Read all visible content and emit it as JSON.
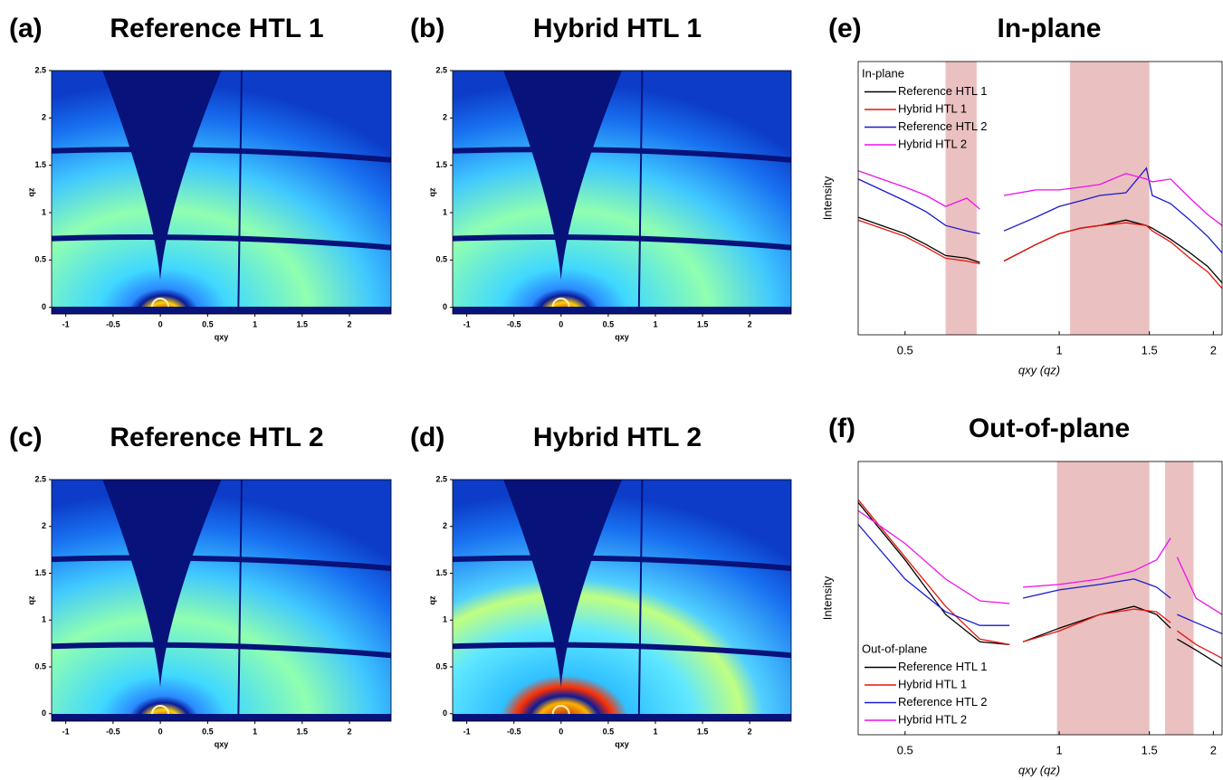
{
  "chart_data": [
    {
      "type": "image",
      "panel": "(a)",
      "title": "Reference HTL 1",
      "xlabel": "qxy",
      "ylabel": "qz",
      "xlim": [
        -1.15,
        2.44
      ],
      "ylim": [
        -0.07,
        2.5
      ],
      "xticks": [
        -1,
        -0.5,
        0,
        0.5,
        1,
        1.5,
        2
      ],
      "yticks": [
        0,
        0.5,
        1,
        1.5,
        2,
        2.5
      ]
    },
    {
      "type": "image",
      "panel": "(b)",
      "title": "Hybrid HTL 1",
      "xlabel": "qxy",
      "ylabel": "qz",
      "xlim": [
        -1.15,
        2.44
      ],
      "ylim": [
        -0.07,
        2.5
      ],
      "xticks": [
        -1,
        -0.5,
        0,
        0.5,
        1,
        1.5,
        2
      ],
      "yticks": [
        0,
        0.5,
        1,
        1.5,
        2,
        2.5
      ]
    },
    {
      "type": "image",
      "panel": "(c)",
      "title": "Reference HTL 2",
      "xlabel": "qxy",
      "ylabel": "qz",
      "xlim": [
        -1.15,
        2.44
      ],
      "ylim": [
        -0.08,
        2.5
      ],
      "xticks": [
        -1,
        -0.5,
        0,
        0.5,
        1,
        1.5,
        2
      ],
      "yticks": [
        0,
        0.5,
        1,
        1.5,
        2,
        2.5
      ]
    },
    {
      "type": "image",
      "panel": "(d)",
      "title": "Hybrid HTL 2",
      "xlabel": "qxy",
      "ylabel": "qz",
      "xlim": [
        -1.15,
        2.44
      ],
      "ylim": [
        -0.08,
        2.5
      ],
      "xticks": [
        -1,
        -0.5,
        0,
        0.5,
        1,
        1.5,
        2
      ],
      "yticks": [
        0,
        0.5,
        1,
        1.5,
        2,
        2.5
      ]
    },
    {
      "type": "line",
      "panel": "(e)",
      "title": "In-plane",
      "xlabel": "qxy (qz)",
      "ylabel": "Intensity",
      "xscale": "log",
      "xlim": [
        0.405,
        2.08
      ],
      "ylim": [
        0,
        100
      ],
      "xticks": [
        0.5,
        1,
        1.5,
        2
      ],
      "legend_title": "In-plane",
      "legend": "upper left",
      "shade_color": "#ebc0c0",
      "shaded_regions": [
        [
          0.6,
          0.69
        ],
        [
          1.05,
          1.5
        ]
      ],
      "x": [
        0.405,
        0.45,
        0.5,
        0.55,
        0.6,
        0.66,
        0.7,
        0.74,
        0.78,
        0.9,
        1.0,
        1.1,
        1.2,
        1.35,
        1.48,
        1.52,
        1.65,
        1.8,
        1.95,
        2.08
      ],
      "series": [
        {
          "name": "Reference HTL 1",
          "color": "#000000",
          "values": [
            43,
            40,
            37,
            33,
            29,
            28,
            26.5,
            null,
            27,
            33,
            37,
            39,
            40,
            42,
            40,
            39,
            35,
            30,
            25,
            19
          ]
        },
        {
          "name": "Hybrid HTL 1",
          "color": "#e8140c",
          "values": [
            42,
            39,
            36,
            32,
            28,
            27,
            26,
            null,
            27,
            33,
            37,
            39,
            40,
            41,
            40,
            38,
            34,
            28,
            23,
            17
          ]
        },
        {
          "name": "Reference HTL 2",
          "color": "#1a1ad0",
          "values": [
            57,
            53,
            49,
            45,
            40,
            38,
            37,
            null,
            38,
            43,
            47,
            49,
            51,
            52,
            61,
            51,
            48,
            42,
            36,
            30
          ]
        },
        {
          "name": "Hybrid HTL 2",
          "color": "#ee10ee",
          "values": [
            60,
            57,
            54,
            51,
            47,
            50,
            46,
            null,
            51,
            53,
            53,
            54,
            55,
            59,
            57,
            56,
            57,
            50,
            44,
            40
          ]
        }
      ]
    },
    {
      "type": "line",
      "panel": "(f)",
      "title": "Out-of-plane",
      "xlabel": "qxy (qz)",
      "ylabel": "Intensity",
      "xscale": "log",
      "xlim": [
        0.405,
        2.08
      ],
      "ylim": [
        0,
        100
      ],
      "xticks": [
        0.5,
        1,
        1.5,
        2
      ],
      "legend_title": "Out-of-plane",
      "legend": "lower left",
      "shade_color": "#ebc0c0",
      "shaded_regions": [
        [
          0.99,
          1.5
        ],
        [
          1.61,
          1.83
        ]
      ],
      "x": [
        0.405,
        0.5,
        0.6,
        0.7,
        0.8,
        0.82,
        0.85,
        1.0,
        1.2,
        1.4,
        1.55,
        1.65,
        1.68,
        1.7,
        1.85,
        2.08
      ],
      "series": [
        {
          "name": "Reference HTL 1",
          "color": "#000000",
          "values": [
            85,
            64,
            44,
            34,
            33,
            null,
            34,
            39,
            44,
            47,
            44,
            39,
            null,
            35,
            31,
            25
          ]
        },
        {
          "name": "Hybrid HTL 1",
          "color": "#e8140c",
          "values": [
            86,
            65,
            47,
            35,
            33,
            null,
            34,
            38,
            44,
            46,
            45,
            41,
            null,
            38,
            33,
            28
          ]
        },
        {
          "name": "Reference HTL 2",
          "color": "#1a1ad0",
          "values": [
            77,
            57,
            45,
            40,
            40,
            null,
            50,
            53,
            55,
            57,
            54,
            50,
            null,
            44,
            41,
            37
          ]
        },
        {
          "name": "Hybrid HTL 2",
          "color": "#ee10ee",
          "values": [
            82,
            70,
            57,
            49,
            48,
            null,
            54,
            55,
            57,
            60,
            64,
            72,
            null,
            65,
            50,
            44
          ]
        }
      ]
    }
  ]
}
